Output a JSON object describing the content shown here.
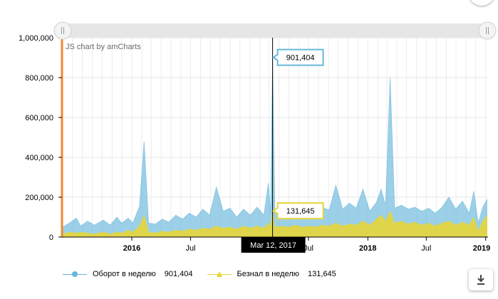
{
  "chart_data": {
    "type": "area",
    "credit": "JS chart by amCharts",
    "y_ticks": [
      "1,000,000",
      "800,000",
      "600,000",
      "400,000",
      "200,000",
      "0"
    ],
    "y_values": [
      1000000,
      800000,
      600000,
      400000,
      200000,
      0
    ],
    "ylim": [
      0,
      1000000
    ],
    "x_range": [
      "2015-06-01",
      "2019-01-06"
    ],
    "x_ticks": [
      {
        "label": "2016",
        "date": "2016-01-01",
        "bold": true
      },
      {
        "label": "Jul",
        "date": "2016-07-01",
        "bold": false
      },
      {
        "label": "Jul",
        "date": "2017-07-01",
        "bold": false
      },
      {
        "label": "2018",
        "date": "2018-01-01",
        "bold": true
      },
      {
        "label": "Jul",
        "date": "2018-07-01",
        "bold": false
      },
      {
        "label": "2019",
        "date": "2019-01-01",
        "bold": true
      }
    ],
    "series": [
      {
        "name": "Оборот в неделю",
        "color": "#67b7dc",
        "points": [
          [
            "2015-06-01",
            50000
          ],
          [
            "2015-06-22",
            70000
          ],
          [
            "2015-07-13",
            95000
          ],
          [
            "2015-07-27",
            55000
          ],
          [
            "2015-08-17",
            80000
          ],
          [
            "2015-09-07",
            60000
          ],
          [
            "2015-10-05",
            85000
          ],
          [
            "2015-10-26",
            60000
          ],
          [
            "2015-11-16",
            100000
          ],
          [
            "2015-11-30",
            70000
          ],
          [
            "2015-12-21",
            95000
          ],
          [
            "2016-01-04",
            70000
          ],
          [
            "2016-01-25",
            155000
          ],
          [
            "2016-02-08",
            480000
          ],
          [
            "2016-02-22",
            70000
          ],
          [
            "2016-03-14",
            65000
          ],
          [
            "2016-04-04",
            90000
          ],
          [
            "2016-04-25",
            75000
          ],
          [
            "2016-05-16",
            110000
          ],
          [
            "2016-06-06",
            90000
          ],
          [
            "2016-06-27",
            120000
          ],
          [
            "2016-07-18",
            100000
          ],
          [
            "2016-08-08",
            140000
          ],
          [
            "2016-08-29",
            110000
          ],
          [
            "2016-09-19",
            250000
          ],
          [
            "2016-10-10",
            130000
          ],
          [
            "2016-10-31",
            145000
          ],
          [
            "2016-11-21",
            100000
          ],
          [
            "2016-12-12",
            140000
          ],
          [
            "2017-01-02",
            110000
          ],
          [
            "2017-01-23",
            150000
          ],
          [
            "2017-02-13",
            110000
          ],
          [
            "2017-02-27",
            270000
          ],
          [
            "2017-03-06",
            120000
          ],
          [
            "2017-03-12",
            901404
          ],
          [
            "2017-03-19",
            130000
          ],
          [
            "2017-04-09",
            150000
          ],
          [
            "2017-04-30",
            120000
          ],
          [
            "2017-05-21",
            150000
          ],
          [
            "2017-06-11",
            125000
          ],
          [
            "2017-07-02",
            135000
          ],
          [
            "2017-07-23",
            120000
          ],
          [
            "2017-08-13",
            150000
          ],
          [
            "2017-09-03",
            135000
          ],
          [
            "2017-09-24",
            260000
          ],
          [
            "2017-10-15",
            140000
          ],
          [
            "2017-11-05",
            170000
          ],
          [
            "2017-11-26",
            145000
          ],
          [
            "2017-12-17",
            240000
          ],
          [
            "2018-01-07",
            130000
          ],
          [
            "2018-01-28",
            175000
          ],
          [
            "2018-02-11",
            240000
          ],
          [
            "2018-02-25",
            160000
          ],
          [
            "2018-03-11",
            800000
          ],
          [
            "2018-03-25",
            145000
          ],
          [
            "2018-04-15",
            160000
          ],
          [
            "2018-05-06",
            140000
          ],
          [
            "2018-05-27",
            150000
          ],
          [
            "2018-06-17",
            130000
          ],
          [
            "2018-07-08",
            145000
          ],
          [
            "2018-07-29",
            120000
          ],
          [
            "2018-08-19",
            150000
          ],
          [
            "2018-09-09",
            200000
          ],
          [
            "2018-09-30",
            140000
          ],
          [
            "2018-10-21",
            180000
          ],
          [
            "2018-11-11",
            120000
          ],
          [
            "2018-11-25",
            230000
          ],
          [
            "2018-12-09",
            70000
          ],
          [
            "2018-12-23",
            150000
          ],
          [
            "2019-01-06",
            190000
          ]
        ]
      },
      {
        "name": "Безнал в неделю",
        "color": "#e6d539",
        "points": [
          [
            "2015-06-01",
            15000
          ],
          [
            "2015-06-22",
            25000
          ],
          [
            "2015-07-13",
            20000
          ],
          [
            "2015-07-27",
            25000
          ],
          [
            "2015-08-17",
            20000
          ],
          [
            "2015-09-07",
            15000
          ],
          [
            "2015-10-05",
            25000
          ],
          [
            "2015-10-26",
            15000
          ],
          [
            "2015-11-16",
            25000
          ],
          [
            "2015-11-30",
            20000
          ],
          [
            "2015-12-21",
            35000
          ],
          [
            "2016-01-04",
            25000
          ],
          [
            "2016-01-25",
            55000
          ],
          [
            "2016-02-08",
            110000
          ],
          [
            "2016-02-22",
            25000
          ],
          [
            "2016-03-14",
            20000
          ],
          [
            "2016-04-04",
            30000
          ],
          [
            "2016-04-25",
            25000
          ],
          [
            "2016-05-16",
            35000
          ],
          [
            "2016-06-06",
            30000
          ],
          [
            "2016-06-27",
            40000
          ],
          [
            "2016-07-18",
            35000
          ],
          [
            "2016-08-08",
            45000
          ],
          [
            "2016-08-29",
            40000
          ],
          [
            "2016-09-19",
            55000
          ],
          [
            "2016-10-10",
            45000
          ],
          [
            "2016-10-31",
            50000
          ],
          [
            "2016-11-21",
            40000
          ],
          [
            "2016-12-12",
            55000
          ],
          [
            "2017-01-02",
            45000
          ],
          [
            "2017-01-23",
            55000
          ],
          [
            "2017-02-13",
            45000
          ],
          [
            "2017-02-27",
            70000
          ],
          [
            "2017-03-06",
            50000
          ],
          [
            "2017-03-12",
            131645
          ],
          [
            "2017-03-19",
            50000
          ],
          [
            "2017-04-09",
            55000
          ],
          [
            "2017-04-30",
            50000
          ],
          [
            "2017-05-21",
            60000
          ],
          [
            "2017-06-11",
            50000
          ],
          [
            "2017-07-02",
            55000
          ],
          [
            "2017-07-23",
            50000
          ],
          [
            "2017-08-13",
            60000
          ],
          [
            "2017-09-03",
            55000
          ],
          [
            "2017-09-24",
            70000
          ],
          [
            "2017-10-15",
            55000
          ],
          [
            "2017-11-05",
            65000
          ],
          [
            "2017-11-26",
            60000
          ],
          [
            "2017-12-17",
            80000
          ],
          [
            "2018-01-07",
            60000
          ],
          [
            "2018-01-28",
            90000
          ],
          [
            "2018-02-11",
            110000
          ],
          [
            "2018-02-25",
            80000
          ],
          [
            "2018-03-11",
            130000
          ],
          [
            "2018-03-25",
            70000
          ],
          [
            "2018-04-15",
            80000
          ],
          [
            "2018-05-06",
            65000
          ],
          [
            "2018-05-27",
            75000
          ],
          [
            "2018-06-17",
            60000
          ],
          [
            "2018-07-08",
            70000
          ],
          [
            "2018-07-29",
            55000
          ],
          [
            "2018-08-19",
            70000
          ],
          [
            "2018-09-09",
            80000
          ],
          [
            "2018-09-30",
            60000
          ],
          [
            "2018-10-21",
            75000
          ],
          [
            "2018-11-11",
            60000
          ],
          [
            "2018-11-25",
            100000
          ],
          [
            "2018-12-09",
            30000
          ],
          [
            "2018-12-23",
            80000
          ],
          [
            "2019-01-06",
            110000
          ]
        ]
      }
    ],
    "cursor": {
      "date": "2017-03-12",
      "date_label": "Mar 12, 2017",
      "values": [
        "901,404",
        "131,645"
      ]
    },
    "legend_placement": "bottom",
    "grid": true
  },
  "legend": [
    {
      "label": "Оборот в неделю",
      "value": "901,404",
      "color": "#67b7dc",
      "marker": "circle"
    },
    {
      "label": "Безнал в неделю",
      "value": "131,645",
      "color": "#e6d539",
      "marker": "triangle"
    }
  ],
  "icons": {
    "export": "download-icon",
    "menu": "menu-icon"
  }
}
